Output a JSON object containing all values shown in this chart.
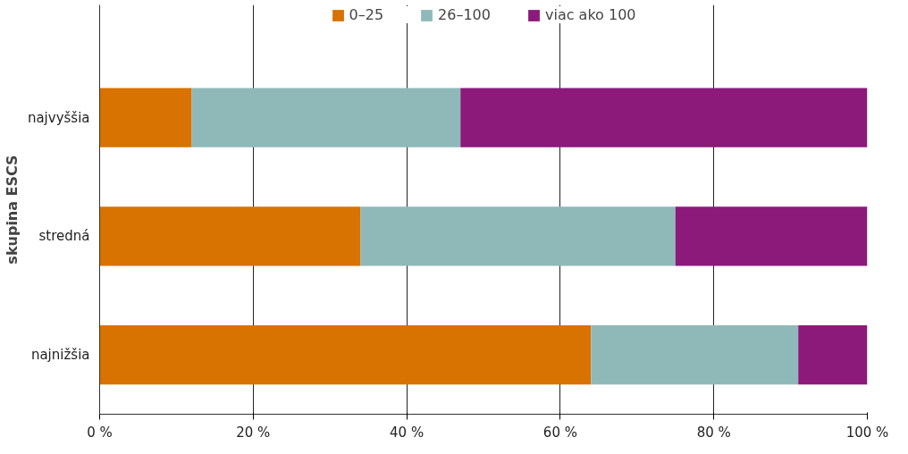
{
  "chart_data": {
    "type": "bar",
    "orientation": "horizontal",
    "stacked": true,
    "ylabel": "skupina ESCS",
    "categories": [
      "najvyššia",
      "stredná",
      "najnižšia"
    ],
    "series": [
      {
        "name": "0–25",
        "color": "#d87200",
        "values": [
          12,
          34,
          64
        ]
      },
      {
        "name": "26–100",
        "color": "#8fb9b9",
        "values": [
          35,
          41,
          27
        ]
      },
      {
        "name": "viac ako 100",
        "color": "#8b1a7a",
        "values": [
          53,
          25,
          9
        ]
      }
    ],
    "xlim": [
      0,
      100
    ],
    "xticks": [
      {
        "value": 0,
        "label": "0 %"
      },
      {
        "value": 20,
        "label": "20 %"
      },
      {
        "value": 40,
        "label": "40 %"
      },
      {
        "value": 60,
        "label": "60 %"
      },
      {
        "value": 80,
        "label": "80 %"
      },
      {
        "value": 100,
        "label": "100 %"
      }
    ],
    "grid": "x",
    "legend": "top"
  }
}
